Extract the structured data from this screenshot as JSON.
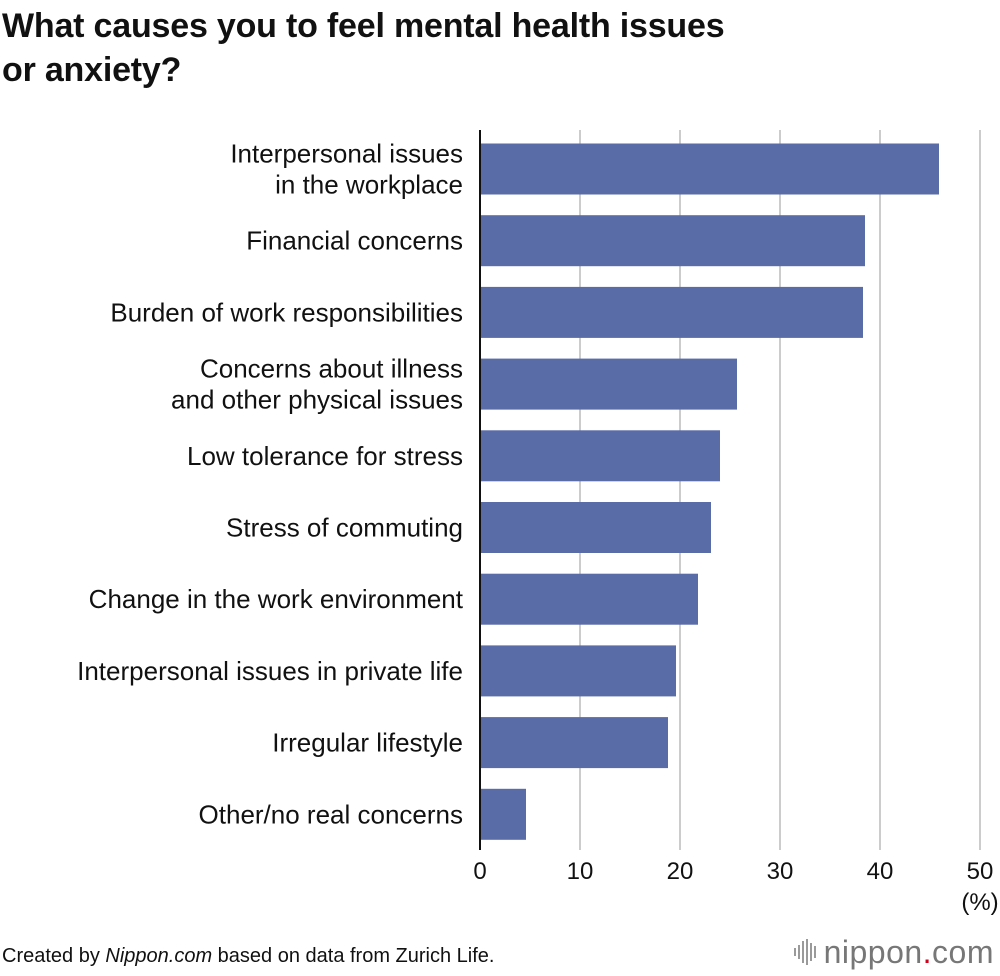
{
  "title": {
    "line1": "What causes you to feel mental health issues",
    "line2": "or anxiety?"
  },
  "chart_data": {
    "type": "bar",
    "orientation": "horizontal",
    "title": "What causes you to feel mental health issues or anxiety?",
    "categories": [
      [
        "Interpersonal issues",
        "in the workplace"
      ],
      [
        "Financial concerns"
      ],
      [
        "Burden of work responsibilities"
      ],
      [
        "Concerns about illness",
        "and other physical issues"
      ],
      [
        "Low tolerance for stress"
      ],
      [
        "Stress of commuting"
      ],
      [
        "Change in the work environment"
      ],
      [
        "Interpersonal issues in private life"
      ],
      [
        "Irregular lifestyle"
      ],
      [
        "Other/no real concerns"
      ]
    ],
    "values": [
      45.9,
      38.5,
      38.3,
      25.7,
      24.0,
      23.1,
      21.8,
      19.6,
      18.8,
      4.6
    ],
    "xlim": [
      0,
      50
    ],
    "xticks": [
      "0",
      "10",
      "20",
      "30",
      "40",
      "50"
    ],
    "unit_label": "(%)",
    "grid": true,
    "bar_color": "#5a6ca8"
  },
  "footer": {
    "prefix": "Created by ",
    "source_name": "Nippon.com",
    "suffix": " based on data from Zurich Life."
  },
  "brand": {
    "name": "nippon",
    "dot": ".",
    "tld": "com"
  }
}
